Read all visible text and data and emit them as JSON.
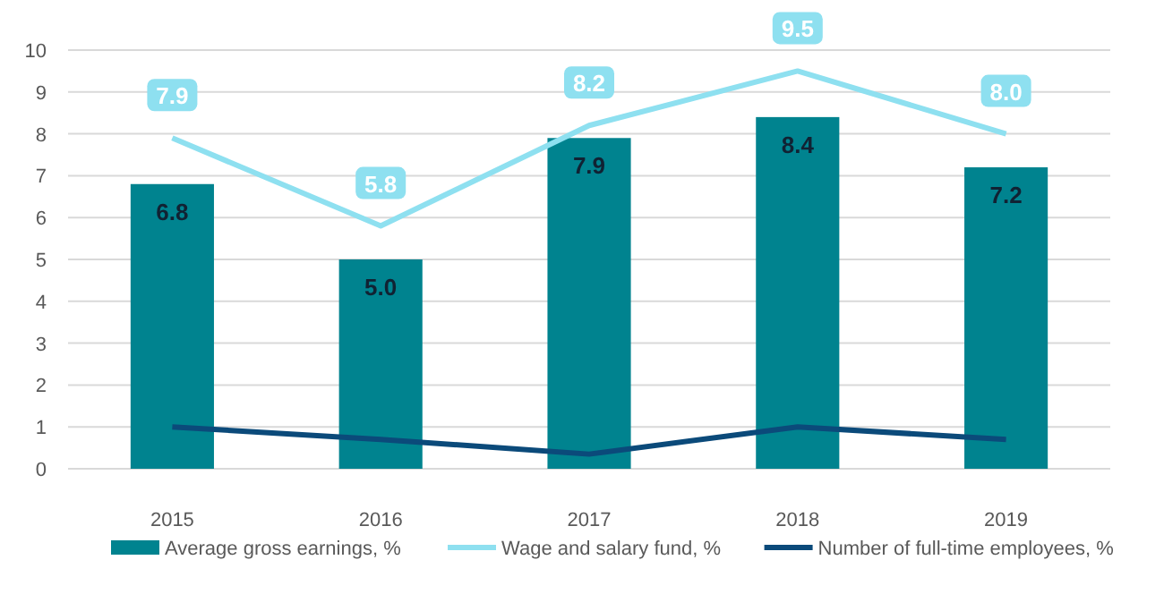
{
  "chart_data": {
    "type": "bar",
    "categories": [
      "2015",
      "2016",
      "2017",
      "2018",
      "2019"
    ],
    "series": [
      {
        "name": "Average gross earnings, %",
        "color": "#00838f",
        "values": [
          6.8,
          5.0,
          7.9,
          8.4,
          7.2
        ],
        "value_labels": [
          "6.8",
          "5.0",
          "7.9",
          "8.4",
          "7.2"
        ]
      },
      {
        "name": "Wage and salary fund, %",
        "type": "line",
        "color": "#8ee0f0",
        "values": [
          7.9,
          5.8,
          8.2,
          9.5,
          8.0
        ],
        "value_labels": [
          "7.9",
          "5.8",
          "8.2",
          "9.5",
          "8.0"
        ]
      },
      {
        "name": "Number of full-time employees, %",
        "type": "line",
        "color": "#0b4a7a",
        "values": [
          1.0,
          0.7,
          0.35,
          1.0,
          0.7
        ]
      }
    ],
    "ylim": [
      0,
      10
    ],
    "yticks": [
      0,
      1,
      2,
      3,
      4,
      5,
      6,
      7,
      8,
      9,
      10
    ],
    "grid": "y",
    "legend": "bottom",
    "marker": "none"
  }
}
